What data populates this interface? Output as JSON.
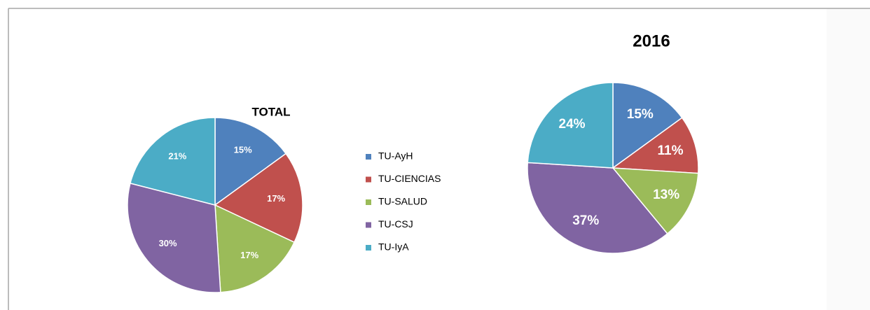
{
  "chart_data": [
    {
      "type": "pie",
      "title": "TOTAL",
      "categories": [
        "TU-AyH",
        "TU-CIENCIAS",
        "TU-SALUD",
        "TU-CSJ",
        "TU-IyA"
      ],
      "values": [
        15,
        17,
        17,
        30,
        21
      ],
      "value_labels": [
        "15%",
        "17%",
        "17%",
        "30%",
        "21%"
      ],
      "colors": [
        "#4f81bd",
        "#c0504d",
        "#9bbb59",
        "#8064a2",
        "#4bacc6"
      ],
      "legend": "right"
    },
    {
      "type": "pie",
      "title": "2016",
      "categories": [
        "TU-AyH",
        "TU-CIENCIAS",
        "TU-SALUD",
        "TU-CSJ",
        "TU-IyA"
      ],
      "values": [
        15,
        11,
        13,
        37,
        24
      ],
      "value_labels": [
        "15%",
        "11%",
        "13%",
        "37%",
        "24%"
      ],
      "colors": [
        "#4f81bd",
        "#c0504d",
        "#9bbb59",
        "#8064a2",
        "#4bacc6"
      ]
    }
  ]
}
